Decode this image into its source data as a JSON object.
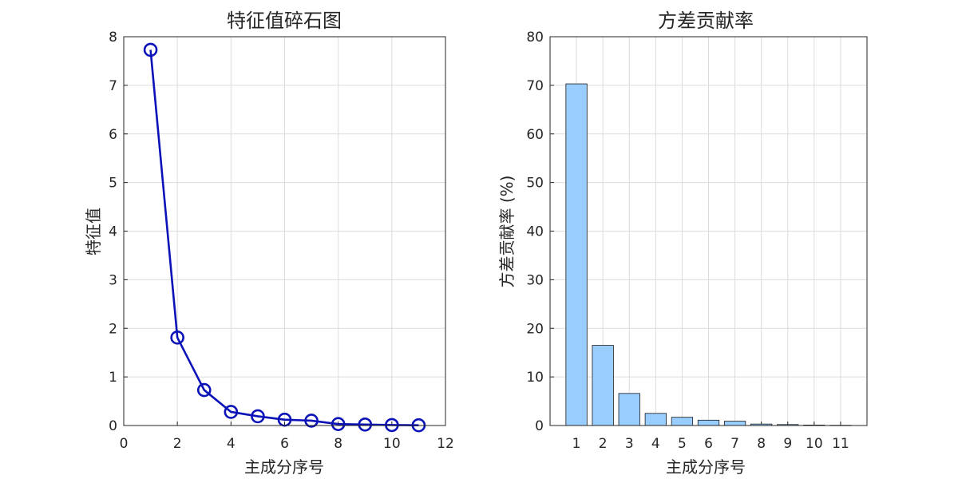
{
  "chart_data": [
    {
      "type": "line",
      "title": "特征值碎石图",
      "xlabel": "主成分序号",
      "ylabel": "特征值",
      "x": [
        1,
        2,
        3,
        4,
        5,
        6,
        7,
        8,
        9,
        10,
        11
      ],
      "y": [
        7.73,
        1.81,
        0.73,
        0.28,
        0.19,
        0.12,
        0.1,
        0.03,
        0.02,
        0.01,
        0.005
      ],
      "xlim": [
        0,
        12
      ],
      "ylim": [
        0,
        8
      ],
      "xticks": [
        0,
        2,
        4,
        6,
        8,
        10,
        12
      ],
      "yticks": [
        0,
        1,
        2,
        3,
        4,
        5,
        6,
        7,
        8
      ],
      "marker": "circle",
      "color": "#0a12b8",
      "grid": true
    },
    {
      "type": "bar",
      "title": "方差贡献率",
      "xlabel": "主成分序号",
      "ylabel": "方差贡献率 (%)",
      "categories": [
        "1",
        "2",
        "3",
        "4",
        "5",
        "6",
        "7",
        "8",
        "9",
        "10",
        "11"
      ],
      "values": [
        70.3,
        16.5,
        6.6,
        2.5,
        1.7,
        1.1,
        0.9,
        0.3,
        0.2,
        0.1,
        0.05
      ],
      "xlim": [
        0,
        12
      ],
      "ylim": [
        0,
        80
      ],
      "yticks": [
        0,
        10,
        20,
        30,
        40,
        50,
        60,
        70,
        80
      ],
      "color": "#99ccff",
      "grid": true
    }
  ]
}
